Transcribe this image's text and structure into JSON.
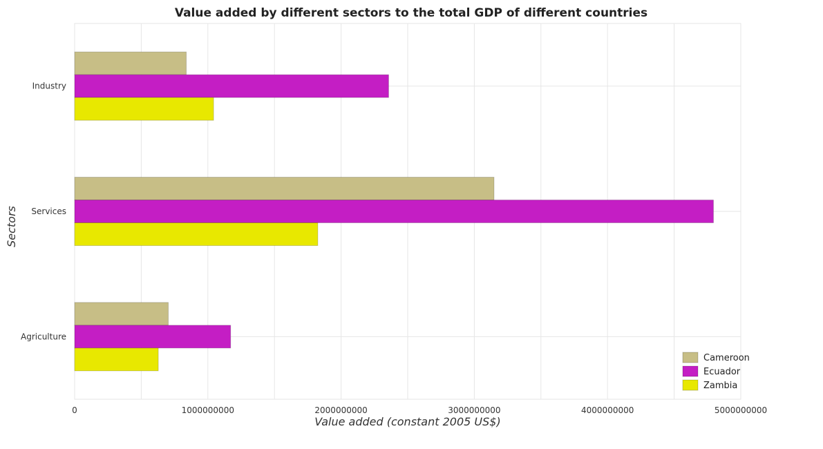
{
  "chart_data": {
    "type": "bar",
    "orientation": "horizontal",
    "title": "Value added by different sectors to the total GDP of different countries",
    "xlabel": "Value added (constant 2005 US$)",
    "ylabel": "Sectors",
    "categories": [
      "Industry",
      "Services",
      "Agriculture"
    ],
    "series": [
      {
        "name": "Cameroon",
        "color": "#c7be86",
        "values": [
          838000000,
          3148000000,
          703000000
        ]
      },
      {
        "name": "Ecuador",
        "color": "#c41ec4",
        "values": [
          2357000000,
          4795000000,
          1171000000
        ]
      },
      {
        "name": "Zambia",
        "color": "#e8e800",
        "values": [
          1043000000,
          1825000000,
          628000000
        ]
      }
    ],
    "xlim": [
      0,
      5000000000
    ],
    "xticks": [
      0,
      1000000000,
      2000000000,
      3000000000,
      4000000000,
      5000000000
    ],
    "xtick_labels": [
      "0",
      "1000000000",
      "2000000000",
      "3000000000",
      "4000000000",
      "5000000000"
    ],
    "grid": true,
    "legend_position": "bottom-right"
  }
}
